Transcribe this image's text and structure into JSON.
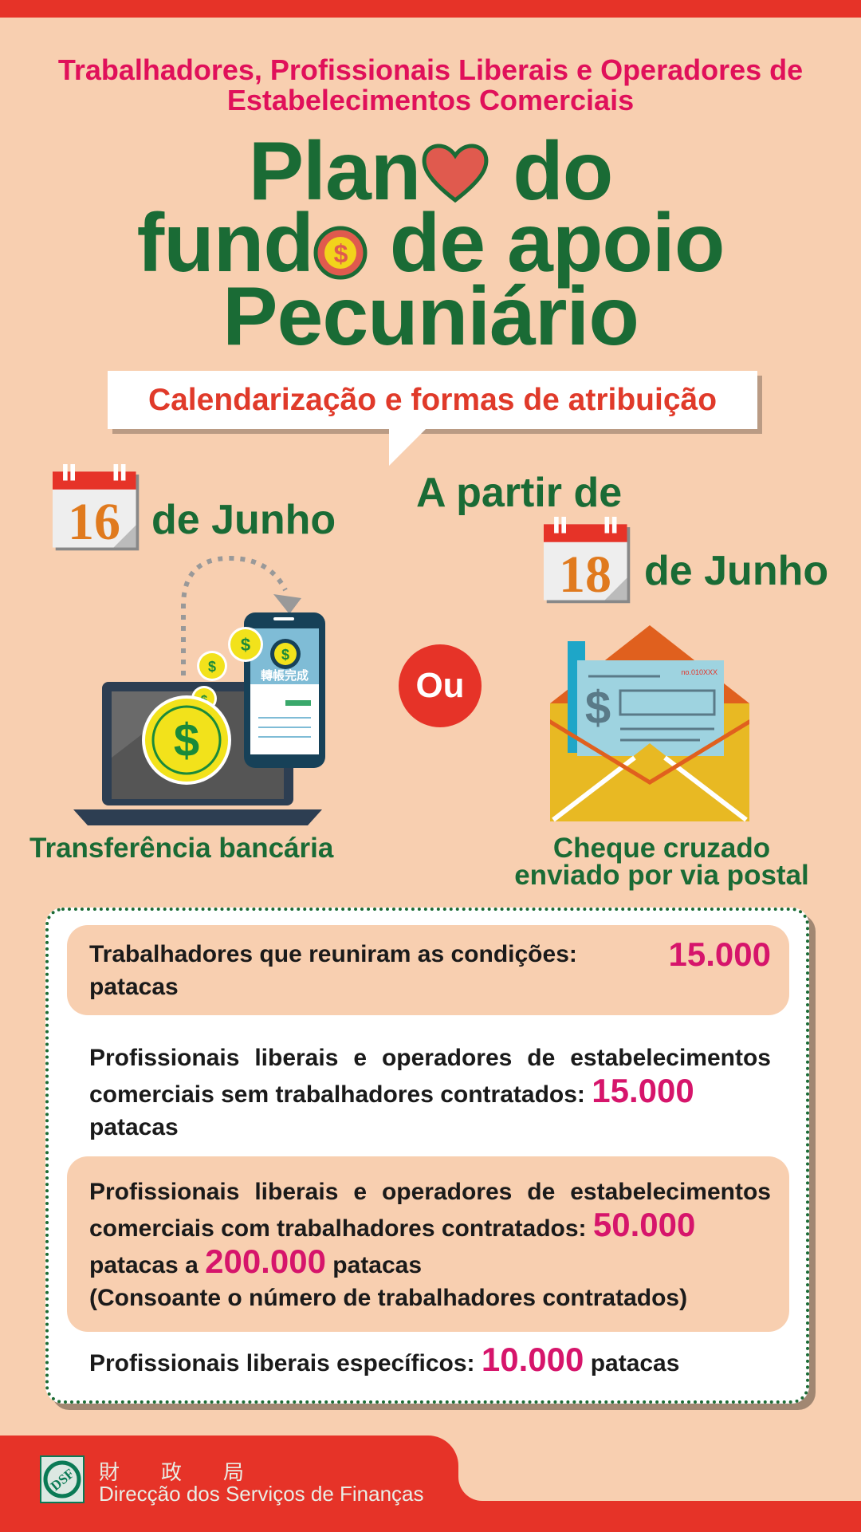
{
  "header": {
    "subtitle_line1": "Trabalhadores, Profissionais Liberais e Operadores de",
    "subtitle_line2": "Estabelecimentos Comerciais",
    "title_line1_a": "Plan",
    "title_line1_b": "do",
    "title_line2_a": "fund",
    "title_line2_b": "de apoio",
    "title_line3": "Pecuniário"
  },
  "bubble": {
    "text": "Calendarização e formas de atribuição"
  },
  "bank": {
    "day": "16",
    "date_suffix": "de Junho",
    "phone_text": "轉帳完成",
    "caption": "Transferência bancária"
  },
  "or_label": "Ou",
  "cheque": {
    "prefix": "A partir de",
    "day": "18",
    "date_suffix": "de Junho",
    "cheque_no": "no.010XXX",
    "caption_line1": "Cheque cruzado",
    "caption_line2": "enviado por via postal"
  },
  "amounts": [
    {
      "text": "Trabalhadores que reuniram as condições:",
      "amount": "15.000",
      "unit": "patacas"
    },
    {
      "text": "Profissionais liberais e operadores de estabelecimentos comerciais sem trabalhadores contratados:",
      "amount": "15.000",
      "unit": "patacas"
    },
    {
      "text": "Profissionais liberais e operadores de estabelecimentos comerciais com trabalhadores contratados:",
      "amount": "50.000",
      "unit_a": "patacas a",
      "amount2": "200.000",
      "unit_b": "patacas",
      "note": "(Consoante o número de trabalhadores contratados)"
    },
    {
      "text": "Profissionais liberais específicos:",
      "amount": "10.000",
      "unit": "patacas"
    }
  ],
  "footer": {
    "logo_text": "DSF",
    "chinese_name": "財　　政　　局",
    "name": "Direcção dos Serviços de Finanças"
  },
  "colors": {
    "background": "#f8cfb0",
    "red": "#e63328",
    "green": "#1a6b35",
    "pink": "#d6156b"
  }
}
